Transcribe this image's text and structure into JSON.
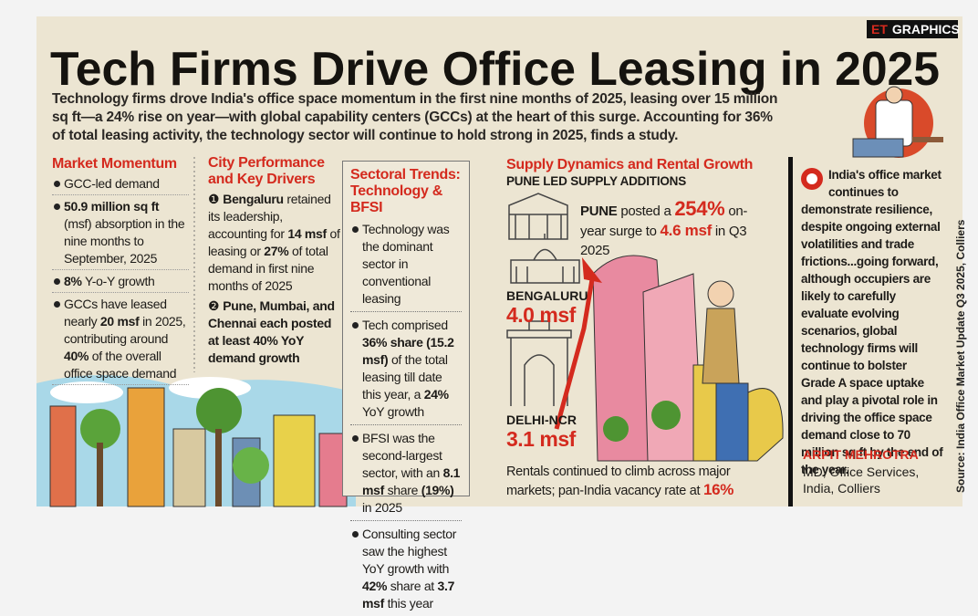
{
  "badge": {
    "brand": "ET",
    "label": "GRAPHICS"
  },
  "title": "Tech Firms Drive Office Leasing in 2025",
  "intro": "Technology firms drove India's office space momentum in the first nine months of 2025, leasing over 15 million sq ft—a 24% rise on year—with global capability centers (GCCs) at the heart of this surge. Accounting for 36% of total leasing activity, the technology sector will continue to hold strong in 2025, finds a study.",
  "market_momentum": {
    "heading": "Market Momentum",
    "bullets": [
      [
        "GCC-led demand"
      ],
      [
        {
          "text": "50.9 million sq ft",
          "bold": true
        },
        " (msf) absorption in the nine months to September, 2025"
      ],
      [
        {
          "text": "8%",
          "bold": true
        },
        " Y-o-Y growth"
      ],
      [
        "GCCs have leased nearly ",
        {
          "text": "20 msf",
          "bold": true
        },
        " in 2025, contributing around ",
        {
          "text": "40%",
          "bold": true
        },
        " of the overall office space demand"
      ]
    ]
  },
  "city_performance": {
    "heading": "City Performance and Key Drivers",
    "items": [
      {
        "marker": "❶",
        "runs": [
          {
            "text": "Bengaluru",
            "bold": true
          },
          " retained its leadership, accounting for ",
          {
            "text": "14 msf",
            "bold": true
          },
          " of leasing or ",
          {
            "text": "27%",
            "bold": true
          },
          " of total demand in first nine months of 2025"
        ]
      },
      {
        "marker": "❷",
        "runs": [
          {
            "text": "Pune, Mumbai, and Chennai each posted at least 40% YoY demand growth",
            "bold": true
          }
        ]
      }
    ]
  },
  "sectoral_trends": {
    "heading": "Sectoral Trends: Technology & BFSI",
    "bullets": [
      [
        "Technology was the dominant sector in conventional leasing"
      ],
      [
        "Tech comprised ",
        {
          "text": "36% share (15.2 msf)",
          "bold": true
        },
        " of the total leasing till date this year, a ",
        {
          "text": "24%",
          "bold": true
        },
        " YoY growth"
      ],
      [
        "BFSI was the second-largest sector, with an ",
        {
          "text": "8.1 msf",
          "bold": true
        },
        " share ",
        {
          "text": "(19%)",
          "bold": true
        },
        " in 2025"
      ],
      [
        "Consulting sector saw the highest YoY growth with ",
        {
          "text": "42%",
          "bold": true
        },
        " share at ",
        {
          "text": "3.7 msf",
          "bold": true
        },
        " this year"
      ]
    ]
  },
  "supply": {
    "heading": "Supply Dynamics and Rental Growth",
    "subheading": "PUNE LED SUPPLY ADDITIONS",
    "pune": [
      {
        "text": "PUNE",
        "bold": true
      },
      " posted a ",
      {
        "text": "254%",
        "bold": true,
        "color": "#d42a1e"
      },
      " on-year surge to ",
      {
        "text": "4.6 msf",
        "bold": true,
        "color": "#d42a1e"
      },
      " in Q3 2025"
    ],
    "cities": [
      {
        "name": "BENGALURU",
        "value": "4.0 msf"
      },
      {
        "name": "DELHI-NCR",
        "value": "3.1 msf"
      }
    ],
    "rentals": [
      "Rentals continued to climb across major markets; pan-India vacancy rate at ",
      {
        "text": "16%",
        "bold": true,
        "color": "#d42a1e"
      }
    ]
  },
  "quote": {
    "text": "India's office market continues to demonstrate resilience, despite ongoing external volatilities and trade frictions...going forward, although occupiers are likely to carefully evaluate evolving scenarios, global technology firms will continue to bolster Grade A space uptake and play a pivotal role in driving the office space demand close to 70 million sq ft by the end of the year.",
    "author": "ARPIT MEHROTRA",
    "role": "MD, Office Services, India, Colliers"
  },
  "source": "Source: India Office Market Update Q3 2025, Colliers"
}
